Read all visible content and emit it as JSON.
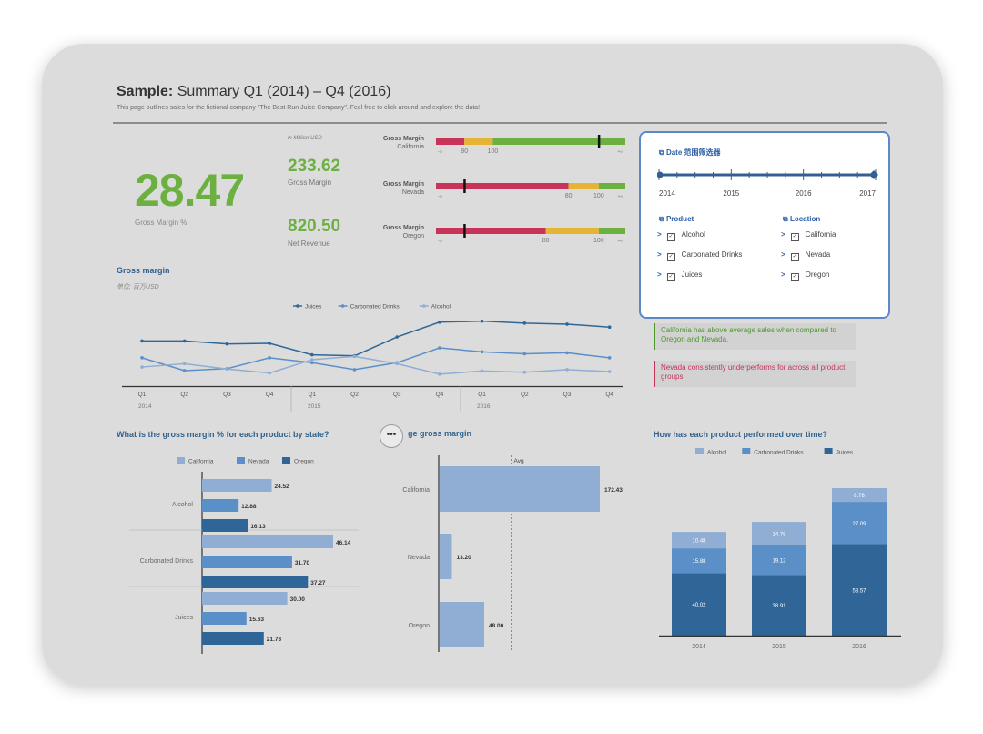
{
  "header": {
    "title_bold": "Sample:",
    "title_rest": "Summary Q1 (2014) – Q4 (2016)",
    "subtitle": "This page outlines sales for the fictional company \"The Best Run Juice Company\". Feel free to click around and explore the data!"
  },
  "kpis": {
    "unit_note": "in Million USD",
    "gross_margin_pct": {
      "value": "28.47",
      "label": "Gross Margin %"
    },
    "gross_margin": {
      "value": "233.62",
      "label": "Gross Margin"
    },
    "net_revenue": {
      "value": "820.50",
      "label": "Net Revenue"
    }
  },
  "bullets": [
    {
      "label_top": "Gross Margin",
      "label_bottom": "California",
      "tick_labels": [
        "80",
        "100"
      ],
      "end_labels": [
        "-∞",
        "+∞"
      ],
      "red_end": 0.15,
      "yellow_end": 0.3,
      "marker": 0.86
    },
    {
      "label_top": "Gross Margin",
      "label_bottom": "Nevada",
      "tick_labels": [
        "80",
        "100"
      ],
      "end_labels": [
        "-∞",
        "+∞"
      ],
      "red_end": 0.7,
      "yellow_end": 0.86,
      "marker": 0.15
    },
    {
      "label_top": "Gross Margin",
      "label_bottom": "Oregon",
      "tick_labels": [
        "80",
        "100"
      ],
      "end_labels": [
        "-∞",
        "+∞"
      ],
      "red_end": 0.58,
      "yellow_end": 0.86,
      "marker": 0.15
    }
  ],
  "gross_margin_section": {
    "title": "Gross margin",
    "unit": "单位: 百万USD"
  },
  "filter_panel": {
    "date_title": "Date 范围筛选器",
    "years": [
      "2014",
      "2015",
      "2016",
      "2017"
    ],
    "product_title": "Product",
    "products": [
      "Alcohol",
      "Carbonated Drinks",
      "Juices"
    ],
    "location_title": "Location",
    "locations": [
      "California",
      "Nevada",
      "Oregon"
    ]
  },
  "notes": {
    "green": "California has above average sales when compared to Oregon and Nevada.",
    "red": "Nevada consistently underperforms for across all product groups."
  },
  "colors": {
    "light": "#90add4",
    "mid": "#5a8fc7",
    "dark": "#2f6697",
    "green": "#6db042",
    "red": "#c73359",
    "yellow": "#e6b434"
  },
  "more_button": "•••",
  "chart_data": [
    {
      "type": "line",
      "title": "Gross margin",
      "x": [
        "Q1 2014",
        "Q2 2014",
        "Q3 2014",
        "Q4 2014",
        "Q1 2015",
        "Q2 2015",
        "Q3 2015",
        "Q4 2015",
        "Q1 2016",
        "Q2 2016",
        "Q3 2016",
        "Q4 2016"
      ],
      "tick_labels": [
        "Q1",
        "Q2",
        "Q3",
        "Q4",
        "Q1",
        "Q2",
        "Q3",
        "Q4",
        "Q1",
        "Q2",
        "Q3",
        "Q4"
      ],
      "year_labels": [
        "2014",
        "2015",
        "2016"
      ],
      "legend": [
        "Juices",
        "Carbonated Drinks",
        "Alcohol"
      ],
      "legend_position": "top-center",
      "series": [
        {
          "name": "Juices",
          "values": [
            21,
            21,
            19.5,
            19.8,
            14,
            13.5,
            23,
            30.5,
            31,
            30,
            29.5,
            28
          ]
        },
        {
          "name": "Carbonated Drinks",
          "values": [
            12.5,
            6,
            7,
            12.5,
            10,
            6.5,
            10,
            17.5,
            15.5,
            14.5,
            15,
            12.5
          ]
        },
        {
          "name": "Alcohol",
          "values": [
            7.8,
            9.5,
            6.8,
            4.8,
            11.5,
            13.2,
            9.5,
            4.2,
            5.8,
            5.2,
            6.5,
            5.5
          ]
        }
      ],
      "ylim": [
        0,
        35
      ],
      "grid": false
    },
    {
      "type": "bar",
      "orientation": "horizontal",
      "title": "What is the gross margin % for each product by state?",
      "categories": [
        "Alcohol",
        "Carbonated Drinks",
        "Juices"
      ],
      "legend": [
        "California",
        "Nevada",
        "Oregon"
      ],
      "legend_position": "top-center",
      "series": [
        {
          "name": "California",
          "values": [
            24.52,
            46.14,
            30.0
          ]
        },
        {
          "name": "Nevada",
          "values": [
            12.88,
            31.7,
            15.63
          ]
        },
        {
          "name": "Oregon",
          "values": [
            16.13,
            37.27,
            21.73
          ]
        }
      ],
      "xlim": [
        0,
        50
      ]
    },
    {
      "type": "bar",
      "orientation": "horizontal",
      "title": "ge gross margin",
      "categories": [
        "California",
        "Nevada",
        "Oregon"
      ],
      "values": [
        172.43,
        13.2,
        48.0
      ],
      "reference_line": {
        "label": "Avg",
        "value": 77.88
      },
      "xlim": [
        0,
        230
      ]
    },
    {
      "type": "bar",
      "stacked": true,
      "title": "How has each product performed over time?",
      "categories": [
        "2014",
        "2015",
        "2016"
      ],
      "legend": [
        "Alcohol",
        "Carbonated Drinks",
        "Juices"
      ],
      "legend_position": "top-center",
      "series": [
        {
          "name": "Juices",
          "values": [
            40.02,
            38.91,
            58.57
          ]
        },
        {
          "name": "Carbonated Drinks",
          "values": [
            15.88,
            19.12,
            27.09
          ]
        },
        {
          "name": "Alcohol",
          "values": [
            10.48,
            14.78,
            8.78
          ]
        }
      ],
      "ylim": [
        0,
        100
      ]
    }
  ]
}
